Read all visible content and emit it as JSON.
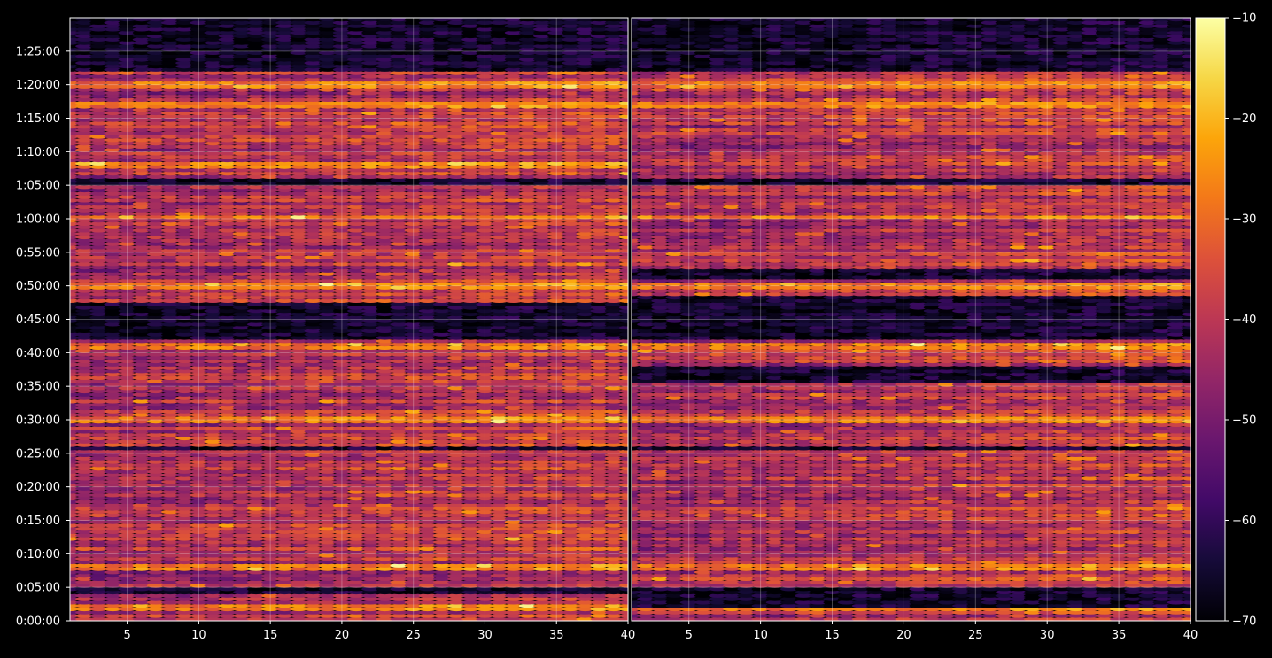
{
  "chart_data": {
    "type": "heatmap",
    "colormap": "inferno",
    "background": "#000000",
    "axis_color": "#ffffff",
    "grid": true,
    "colorbar": {
      "range": [
        -70,
        -10
      ],
      "ticks": [
        -10,
        -20,
        -30,
        -40,
        -50,
        -60,
        -70
      ],
      "tick_labels": [
        "−10",
        "−20",
        "−30",
        "−40",
        "−50",
        "−60",
        "−70"
      ]
    },
    "y_axis": {
      "units": "h:mm:ss",
      "range": [
        "0:00:00",
        "1:30:00"
      ],
      "ticks": [
        "0:00:00",
        "0:05:00",
        "0:10:00",
        "0:15:00",
        "0:20:00",
        "0:25:00",
        "0:30:00",
        "0:35:00",
        "0:40:00",
        "0:45:00",
        "0:50:00",
        "0:55:00",
        "1:00:00",
        "1:05:00",
        "1:10:00",
        "1:15:00",
        "1:20:00",
        "1:25:00"
      ]
    },
    "panels": [
      {
        "x_range": [
          1,
          40
        ],
        "x_ticks": [
          5,
          10,
          15,
          20,
          25,
          30,
          35,
          40
        ],
        "x_tick_labels": [
          "5",
          "10",
          "15",
          "20",
          "25",
          "30",
          "35",
          "40"
        ],
        "z_range": [
          -70,
          -10
        ],
        "quiet_bands": [
          [
            "0:04:00",
            "0:05:00"
          ],
          [
            "0:25:30",
            "0:26:00"
          ],
          [
            "0:42:00",
            "0:47:30"
          ],
          [
            "1:05:00",
            "1:06:00"
          ],
          [
            "1:22:00",
            "1:30:00"
          ]
        ],
        "hot_bands": [
          [
            "0:01:30",
            "0:02:30"
          ],
          [
            "0:07:30",
            "0:08:30"
          ],
          [
            "0:29:30",
            "0:30:30"
          ],
          [
            "0:40:30",
            "0:41:30"
          ],
          [
            "0:49:30",
            "0:50:30"
          ],
          [
            "1:00:00",
            "1:00:30"
          ],
          [
            "1:07:30",
            "1:08:30"
          ],
          [
            "1:16:30",
            "1:17:30"
          ],
          [
            "1:19:30",
            "1:20:30"
          ]
        ]
      },
      {
        "x_range": [
          1,
          40
        ],
        "x_ticks": [
          5,
          10,
          15,
          20,
          25,
          30,
          35,
          40
        ],
        "x_tick_labels": [
          "5",
          "10",
          "15",
          "20",
          "25",
          "30",
          "35",
          "40"
        ],
        "z_range": [
          -70,
          -10
        ],
        "quiet_bands": [
          [
            "0:02:00",
            "0:05:00"
          ],
          [
            "0:25:30",
            "0:26:00"
          ],
          [
            "0:35:30",
            "0:38:00"
          ],
          [
            "0:42:00",
            "0:48:30"
          ],
          [
            "0:51:00",
            "0:52:30"
          ],
          [
            "1:05:00",
            "1:06:00"
          ],
          [
            "1:22:00",
            "1:30:00"
          ]
        ],
        "hot_bands": [
          [
            "0:01:30",
            "0:02:30"
          ],
          [
            "0:07:30",
            "0:08:30"
          ],
          [
            "0:29:30",
            "0:30:30"
          ],
          [
            "0:40:30",
            "0:41:30"
          ],
          [
            "0:49:30",
            "0:50:30"
          ],
          [
            "1:00:00",
            "1:00:30"
          ],
          [
            "1:16:30",
            "1:17:30"
          ],
          [
            "1:19:30",
            "1:20:30"
          ]
        ]
      }
    ]
  }
}
